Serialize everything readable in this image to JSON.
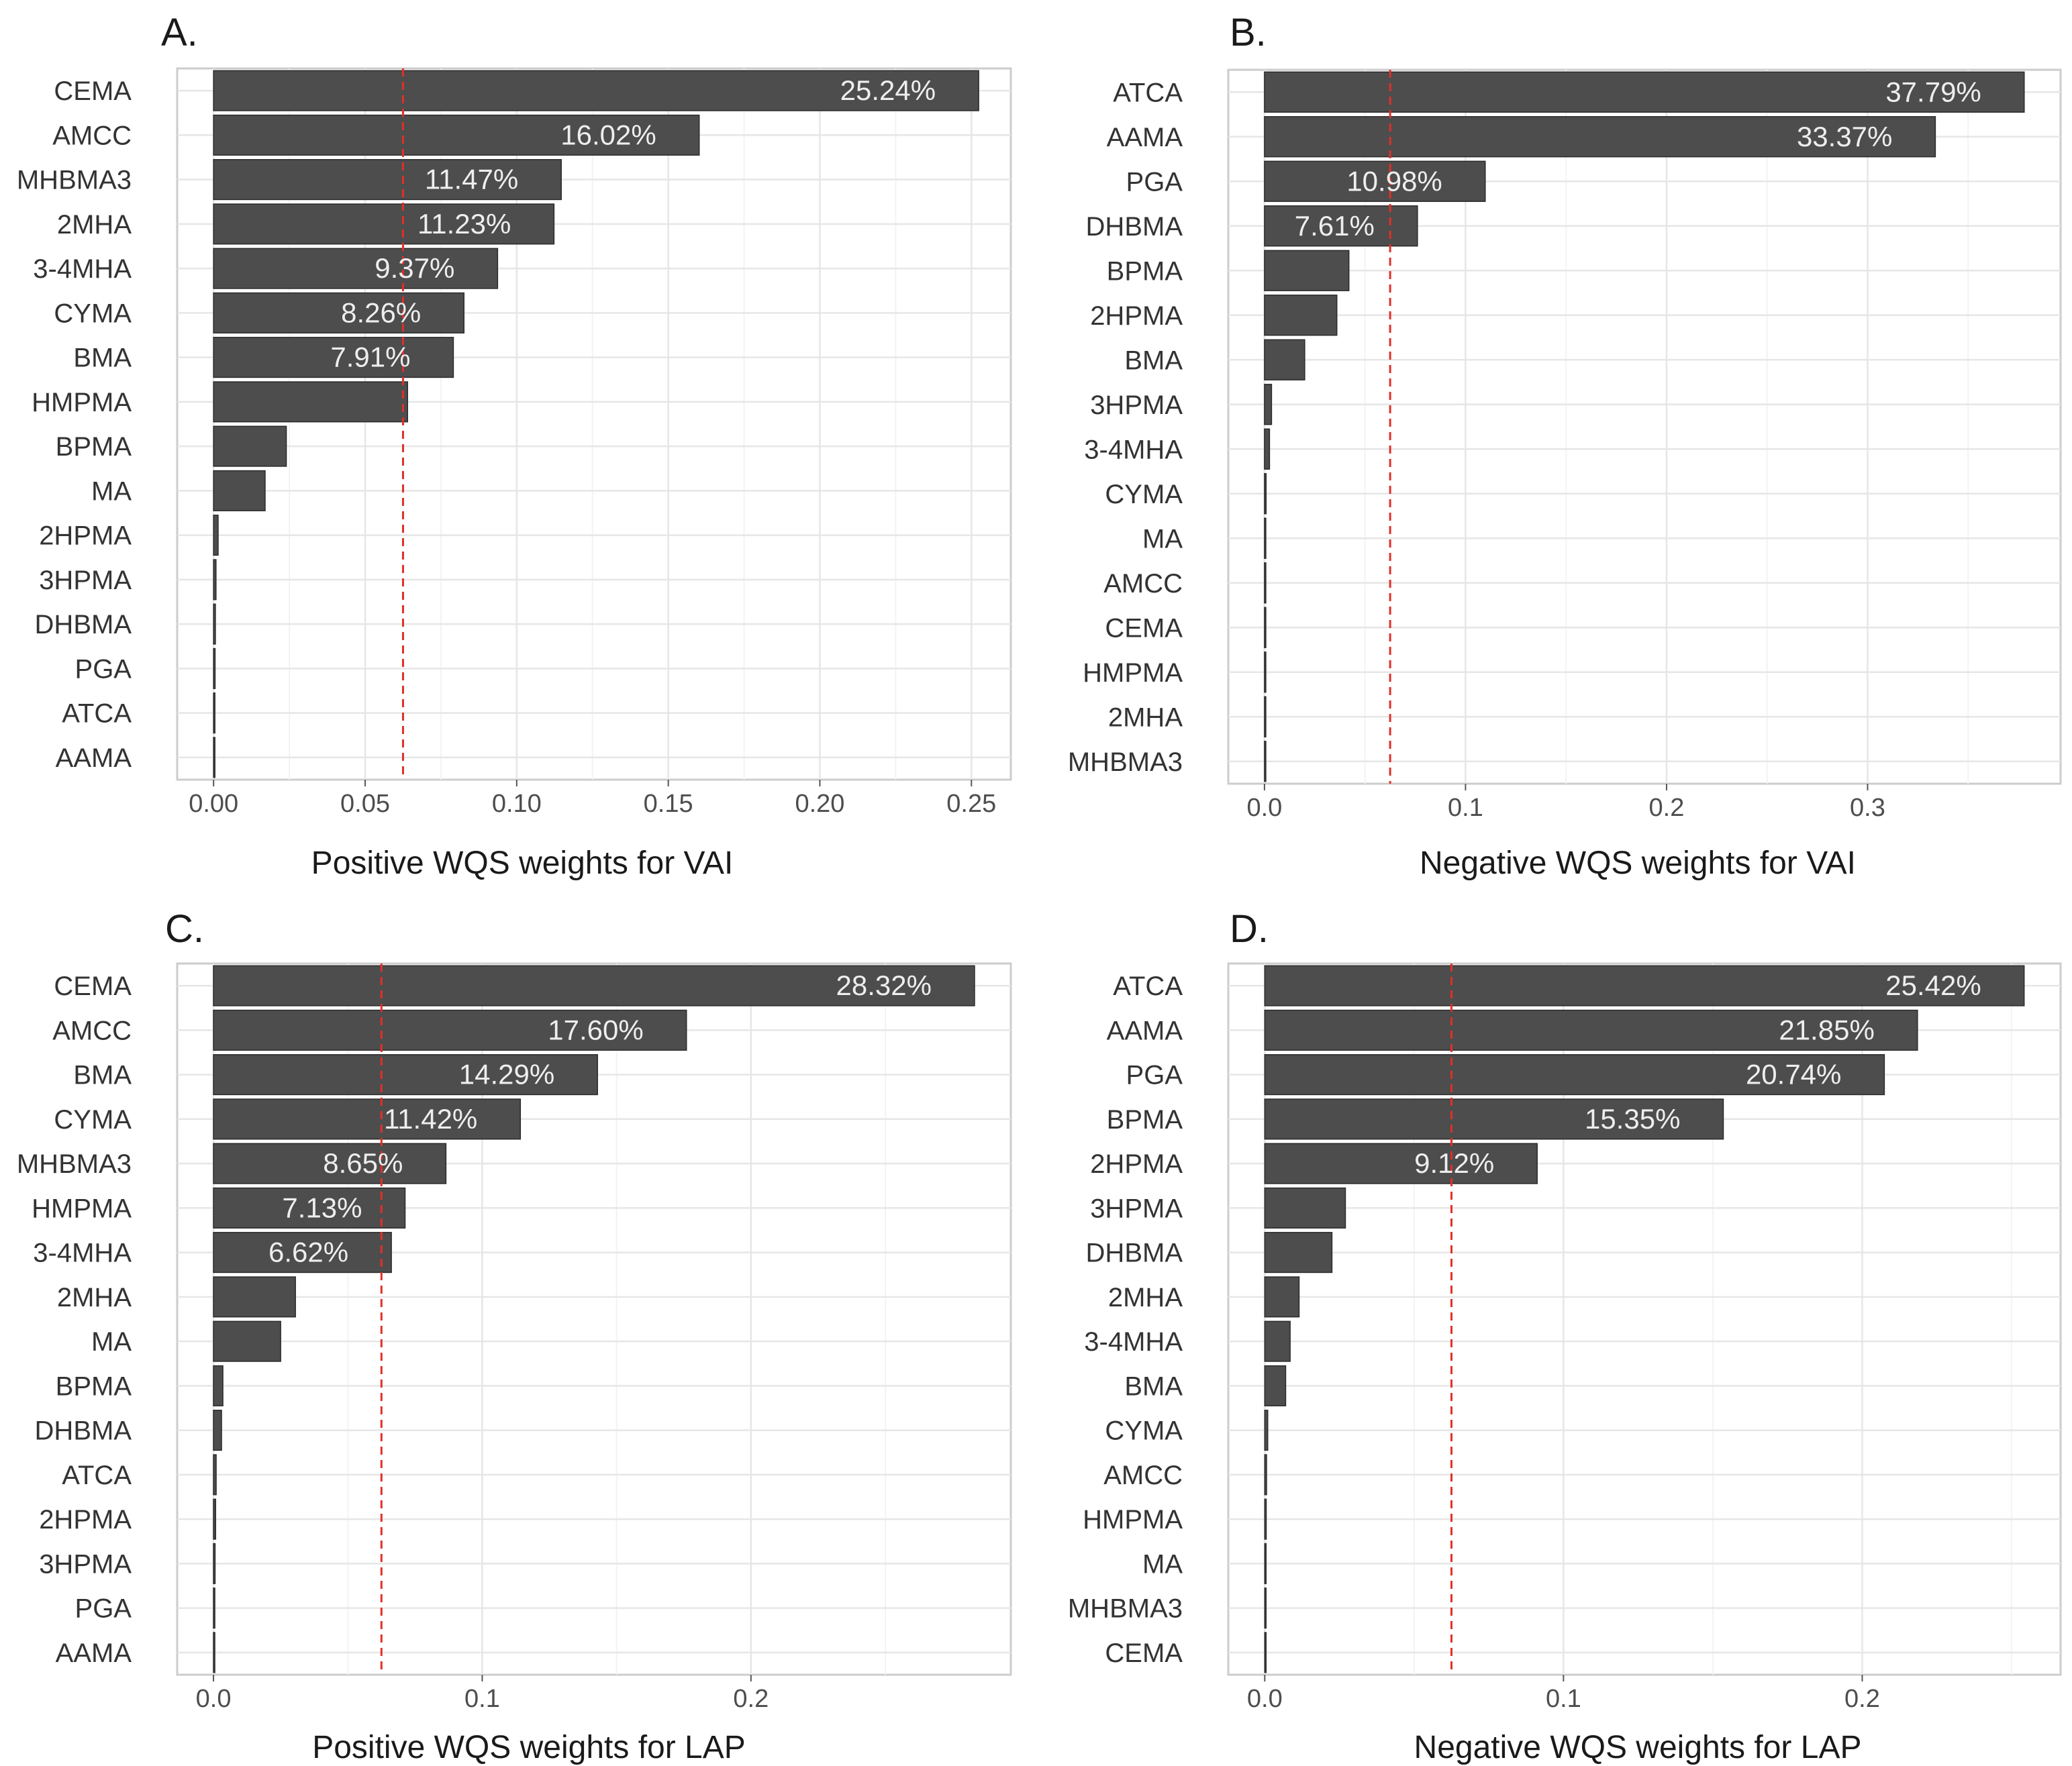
{
  "chart_data": [
    {
      "type": "bar",
      "orientation": "horizontal",
      "panel": "A.",
      "xlabel": "Positive WQS weights for VAI",
      "xlim": [
        -0.012,
        0.263
      ],
      "xticks": [
        0,
        0.05,
        0.1,
        0.15,
        0.2,
        0.25
      ],
      "xtick_labels": [
        "0.00",
        "0.05",
        "0.10",
        "0.15",
        "0.20",
        "0.25"
      ],
      "threshold": 0.0625,
      "grid": true,
      "categories": [
        "CEMA",
        "AMCC",
        "MHBMA3",
        "2MHA",
        "3-4MHA",
        "CYMA",
        "BMA",
        "HMPMA",
        "BPMA",
        "MA",
        "2HPMA",
        "3HPMA",
        "DHBMA",
        "PGA",
        "ATCA",
        "AAMA"
      ],
      "values": [
        0.2524,
        0.1602,
        0.1147,
        0.1123,
        0.0937,
        0.0826,
        0.0791,
        0.064,
        0.024,
        0.017,
        0.0015,
        0.0008,
        0.0006,
        0.0005,
        0.0004,
        0.0003
      ],
      "labels": [
        "25.24%",
        "16.02%",
        "11.47%",
        "11.23%",
        "9.37%",
        "8.26%",
        "7.91%",
        "",
        "",
        "",
        "",
        "",
        "",
        "",
        "",
        ""
      ]
    },
    {
      "type": "bar",
      "orientation": "horizontal",
      "panel": "B.",
      "xlabel": "Negative WQS weights for VAI",
      "xlim": [
        -0.018,
        0.396
      ],
      "xticks": [
        0,
        0.1,
        0.2,
        0.3
      ],
      "xtick_labels": [
        "0.0",
        "0.1",
        "0.2",
        "0.3"
      ],
      "threshold": 0.0625,
      "grid": true,
      "categories": [
        "ATCA",
        "AAMA",
        "PGA",
        "DHBMA",
        "BPMA",
        "2HPMA",
        "BMA",
        "3HPMA",
        "3-4MHA",
        "CYMA",
        "MA",
        "AMCC",
        "CEMA",
        "HMPMA",
        "2MHA",
        "MHBMA3"
      ],
      "values": [
        0.3779,
        0.3337,
        0.1098,
        0.0761,
        0.042,
        0.036,
        0.02,
        0.0035,
        0.0025,
        0.0008,
        0.0006,
        0.0005,
        0.0004,
        0.0003,
        0.0003,
        0.0002
      ],
      "labels": [
        "37.79%",
        "33.37%",
        "10.98%",
        "7.61%",
        "",
        "",
        "",
        "",
        "",
        "",
        "",
        "",
        "",
        "",
        "",
        ""
      ]
    },
    {
      "type": "bar",
      "orientation": "horizontal",
      "panel": "C.",
      "xlabel": "Positive WQS weights for LAP",
      "xlim": [
        -0.0135,
        0.2967
      ],
      "xticks": [
        0,
        0.1,
        0.2
      ],
      "xtick_labels": [
        "0.0",
        "0.1",
        "0.2"
      ],
      "threshold": 0.0625,
      "grid": true,
      "categories": [
        "CEMA",
        "AMCC",
        "BMA",
        "CYMA",
        "MHBMA3",
        "HMPMA",
        "3-4MHA",
        "2MHA",
        "MA",
        "BPMA",
        "DHBMA",
        "ATCA",
        "2HPMA",
        "3HPMA",
        "PGA",
        "AAMA"
      ],
      "values": [
        0.2832,
        0.176,
        0.1429,
        0.1142,
        0.0865,
        0.0713,
        0.0662,
        0.0305,
        0.025,
        0.0035,
        0.003,
        0.001,
        0.0008,
        0.0006,
        0.0005,
        0.0004
      ],
      "labels": [
        "28.32%",
        "17.60%",
        "14.29%",
        "11.42%",
        "8.65%",
        "7.13%",
        "6.62%",
        "",
        "",
        "",
        "",
        "",
        "",
        "",
        "",
        ""
      ]
    },
    {
      "type": "bar",
      "orientation": "horizontal",
      "panel": "D.",
      "xlabel": "Negative WQS weights for LAP",
      "xlim": [
        -0.0122,
        0.2664
      ],
      "xticks": [
        0,
        0.1,
        0.2
      ],
      "xtick_labels": [
        "0.0",
        "0.1",
        "0.2"
      ],
      "threshold": 0.0625,
      "grid": true,
      "categories": [
        "ATCA",
        "AAMA",
        "PGA",
        "BPMA",
        "2HPMA",
        "3HPMA",
        "DHBMA",
        "2MHA",
        "3-4MHA",
        "BMA",
        "CYMA",
        "AMCC",
        "HMPMA",
        "MA",
        "MHBMA3",
        "CEMA"
      ],
      "values": [
        0.2542,
        0.2185,
        0.2074,
        0.1535,
        0.0912,
        0.027,
        0.0225,
        0.0115,
        0.0085,
        0.007,
        0.001,
        0.0006,
        0.0005,
        0.0004,
        0.0003,
        0.0002
      ],
      "labels": [
        "25.42%",
        "21.85%",
        "20.74%",
        "15.35%",
        "9.12%",
        "",
        "",
        "",
        "",
        "",
        "",
        "",
        "",
        "",
        "",
        ""
      ]
    }
  ],
  "colors": {
    "bar_fill": "#4d4d4d",
    "bar_stroke": "#2b2b2b",
    "threshold_line": "#e0302a",
    "grid_major": "#e6e6e6",
    "grid_minor": "#f3f3f3",
    "panel_border": "#cccccc",
    "tick_text": "#4d4d4d",
    "bar_label_text": "#eeeeee"
  }
}
